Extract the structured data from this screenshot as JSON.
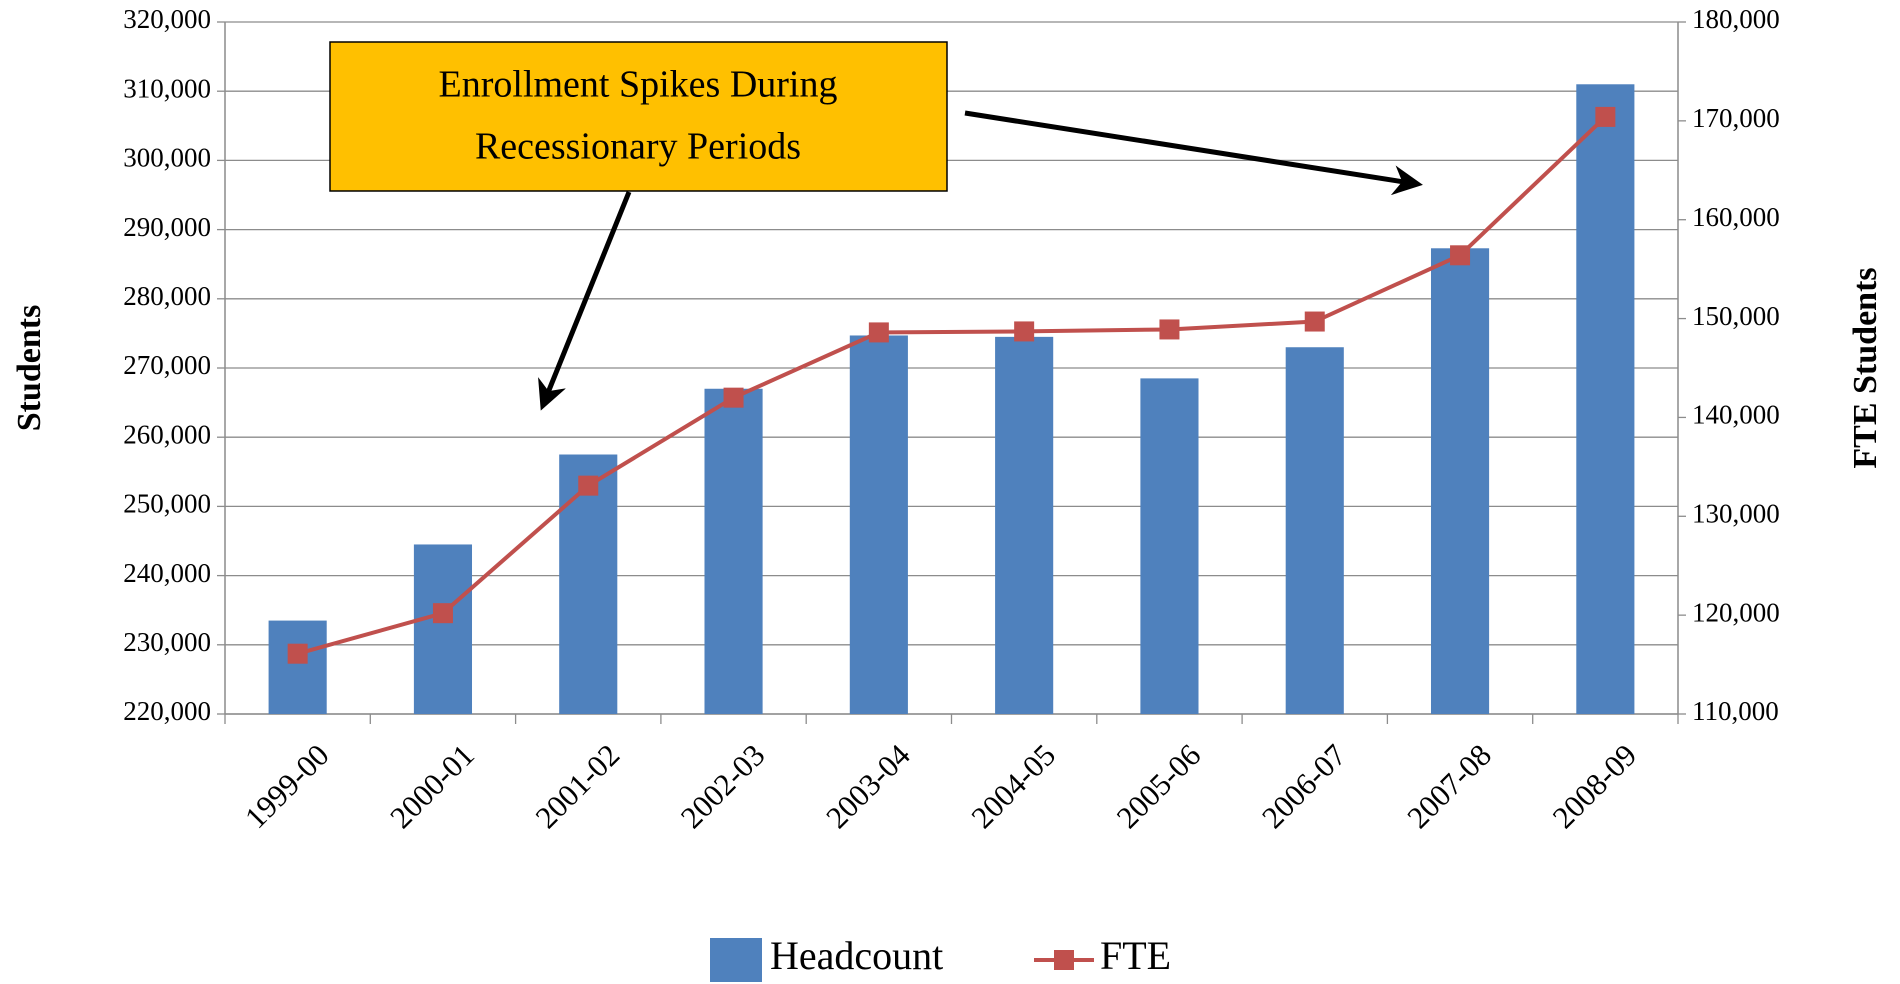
{
  "chart_data": {
    "type": "bar-line",
    "annotation": [
      "Enrollment Spikes During",
      "Recessionary Periods"
    ],
    "ylabel": "Students",
    "y2label": "FTE Students",
    "categories": [
      "1999-00",
      "2000-01",
      "2001-02",
      "2002-03",
      "2003-04",
      "2004-05",
      "2005-06",
      "2006-07",
      "2007-08",
      "2008-09"
    ],
    "series": [
      {
        "name": "Headcount",
        "type": "bar",
        "color": "#4f81bd",
        "values": [
          233500,
          244500,
          257500,
          267000,
          274700,
          274500,
          268500,
          273000,
          287300,
          311000
        ]
      },
      {
        "name": "FTE",
        "type": "line",
        "color": "#c0504d",
        "axis": "y2",
        "values": [
          116100,
          120200,
          133100,
          142000,
          148600,
          148700,
          148900,
          149700,
          156400,
          170400
        ]
      }
    ],
    "ylim": [
      220000,
      320000
    ],
    "yticks": [
      {
        "value": 220000,
        "label": "220,000"
      },
      {
        "value": 230000,
        "label": "230,000"
      },
      {
        "value": 240000,
        "label": "240,000"
      },
      {
        "value": 250000,
        "label": "250,000"
      },
      {
        "value": 260000,
        "label": "260,000"
      },
      {
        "value": 270000,
        "label": "270,000"
      },
      {
        "value": 280000,
        "label": "280,000"
      },
      {
        "value": 290000,
        "label": "290,000"
      },
      {
        "value": 300000,
        "label": "300,000"
      },
      {
        "value": 310000,
        "label": "310,000"
      },
      {
        "value": 320000,
        "label": "320,000"
      }
    ],
    "y2lim": [
      110000,
      180000
    ],
    "y2ticks": [
      {
        "value": 110000,
        "label": "110,000"
      },
      {
        "value": 120000,
        "label": "120,000"
      },
      {
        "value": 130000,
        "label": "130,000"
      },
      {
        "value": 140000,
        "label": "140,000"
      },
      {
        "value": 150000,
        "label": "150,000"
      },
      {
        "value": 160000,
        "label": "160,000"
      },
      {
        "value": 170000,
        "label": "170,000"
      },
      {
        "value": 180000,
        "label": "180,000"
      }
    ],
    "grid": true,
    "legend": "bottom"
  }
}
